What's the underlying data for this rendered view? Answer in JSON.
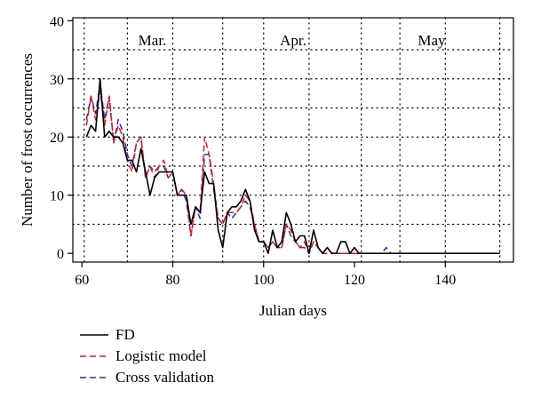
{
  "chart_data": {
    "type": "line",
    "xlabel": "Julian days",
    "ylabel": "Number of frost occurrences",
    "xlim": [
      58,
      155
    ],
    "ylim": [
      -1.5,
      40.5
    ],
    "xticks": [
      60,
      80,
      100,
      120,
      140
    ],
    "yticks": [
      0,
      10,
      20,
      30,
      40
    ],
    "grid": "dotted",
    "months": [
      {
        "label": "Mar.",
        "label_x": 75.5
      },
      {
        "label": "Apr.",
        "label_x": 106.5
      },
      {
        "label": "May",
        "label_x": 137
      }
    ],
    "month_dividers": [
      60.5,
      91,
      121.5,
      152
    ],
    "grid_h": [
      5,
      10,
      15,
      20,
      25,
      30,
      35
    ],
    "grid_v": [
      70,
      80,
      100,
      110,
      130,
      140
    ],
    "legend_position": "bottom-left",
    "series": [
      {
        "name": "FD",
        "color": "#000000",
        "dash": "",
        "width": 1.6,
        "x": [
          61,
          62,
          63,
          64,
          65,
          66,
          67,
          68,
          69,
          70,
          71,
          72,
          73,
          74,
          75,
          76,
          77,
          78,
          79,
          80,
          81,
          82,
          83,
          84,
          85,
          86,
          87,
          88,
          89,
          90,
          91,
          92,
          93,
          94,
          95,
          96,
          97,
          98,
          99,
          100,
          101,
          102,
          103,
          104,
          105,
          106,
          107,
          108,
          109,
          110,
          111,
          112,
          113,
          114,
          115,
          116,
          117,
          118,
          119,
          120,
          121,
          122,
          123,
          124,
          125,
          126,
          127,
          128,
          129,
          130,
          131,
          132,
          133,
          134,
          135,
          136,
          137,
          138,
          139,
          140,
          141,
          142,
          143,
          144,
          145,
          146,
          147,
          148,
          149,
          150,
          151,
          152
        ],
        "y": [
          20,
          22,
          21,
          30,
          20,
          21,
          20,
          20,
          19,
          16,
          16,
          14,
          18,
          14,
          10,
          13,
          14,
          14,
          14,
          14,
          10,
          10,
          10,
          5,
          8,
          7,
          14,
          12,
          12,
          4,
          1,
          7,
          8,
          8,
          9,
          11,
          9,
          4,
          2,
          2,
          0,
          4,
          1,
          2,
          7,
          5,
          2,
          3,
          3,
          0,
          4,
          1,
          0,
          1,
          0,
          0,
          2,
          2,
          0,
          1,
          0,
          0,
          0,
          0,
          0,
          0,
          0,
          0,
          0,
          0,
          0,
          0,
          0,
          0,
          0,
          0,
          0,
          0,
          0,
          0,
          0,
          0,
          0,
          0,
          0,
          0,
          0,
          0,
          0,
          0,
          0,
          0
        ]
      },
      {
        "name": "Logistic model",
        "color": "#e8191b",
        "dash": "7,4",
        "width": 1.5,
        "x": [
          61,
          62,
          63,
          64,
          65,
          66,
          67,
          68,
          69,
          70,
          71,
          72,
          73,
          74,
          75,
          76,
          77,
          78,
          79,
          80,
          81,
          82,
          83,
          84,
          85,
          86,
          87,
          88,
          89,
          90,
          91,
          92,
          93,
          94,
          95,
          96,
          97,
          98,
          99,
          100,
          101,
          102,
          103,
          104,
          105,
          106,
          107,
          108,
          109,
          110,
          111,
          112,
          113,
          114,
          115,
          116,
          117,
          118,
          119,
          120,
          121,
          122,
          123,
          124,
          125,
          126,
          127,
          128,
          129,
          130,
          131,
          132,
          133,
          134,
          135,
          136,
          137,
          138,
          139,
          140,
          141,
          142,
          143,
          144,
          145,
          146,
          147,
          148,
          149,
          150,
          151,
          152
        ],
        "y": [
          22,
          27,
          23,
          28,
          22,
          27,
          19,
          22,
          20,
          16,
          14,
          19,
          20,
          13,
          15,
          13,
          15,
          16,
          13,
          14,
          10,
          11,
          10,
          3,
          8,
          7,
          20,
          17,
          12,
          6,
          5,
          7,
          7,
          7,
          8,
          10,
          9,
          5,
          2,
          2,
          1,
          2,
          1,
          1,
          5,
          4,
          2,
          1,
          2,
          0,
          2,
          1,
          0,
          0,
          0,
          0,
          0,
          0,
          0,
          0,
          0,
          0,
          0,
          0,
          0,
          0,
          0,
          0,
          0,
          0,
          0,
          0,
          0,
          0,
          0,
          0,
          0,
          0,
          0,
          0,
          0,
          0,
          0,
          0,
          0,
          0,
          0,
          0,
          0,
          0,
          0,
          0
        ]
      },
      {
        "name": "Cross validation",
        "color": "#2b2bb8",
        "dash": "7,4",
        "width": 1.5,
        "x": [
          61,
          62,
          63,
          64,
          65,
          66,
          67,
          68,
          69,
          70,
          71,
          72,
          73,
          74,
          75,
          76,
          77,
          78,
          79,
          80,
          81,
          82,
          83,
          84,
          85,
          86,
          87,
          88,
          89,
          90,
          91,
          92,
          93,
          94,
          95,
          96,
          97,
          98,
          99,
          100,
          101,
          102,
          103,
          104,
          105,
          106,
          107,
          108,
          109,
          110,
          111,
          112,
          113,
          114,
          115,
          116,
          117,
          118,
          119,
          120,
          121,
          122,
          123,
          124,
          125,
          126,
          127,
          128,
          129,
          130,
          131,
          132,
          133,
          134,
          135,
          136,
          137,
          138,
          139,
          140,
          141,
          142,
          143,
          144,
          145,
          146,
          147,
          148,
          149,
          150,
          151,
          152
        ],
        "y": [
          23,
          27,
          24,
          29,
          23,
          27,
          19,
          23,
          21,
          17,
          15,
          19,
          20,
          13,
          15,
          14,
          15,
          15,
          13,
          14,
          10,
          11,
          9,
          3,
          8,
          6,
          17,
          17,
          11,
          6,
          5,
          7,
          6,
          7,
          8,
          9,
          8,
          5,
          2,
          2,
          1,
          2,
          1,
          1,
          5,
          3,
          2,
          1,
          1,
          0,
          2,
          1,
          0,
          1,
          0,
          0,
          0,
          0,
          0,
          0,
          0,
          0,
          0,
          0,
          0,
          0,
          1,
          0,
          0,
          0,
          0,
          0,
          0,
          0,
          0,
          0,
          0,
          0,
          0,
          0,
          0,
          0,
          0,
          0,
          0,
          0,
          0,
          0,
          0,
          0,
          0,
          0
        ]
      }
    ]
  }
}
